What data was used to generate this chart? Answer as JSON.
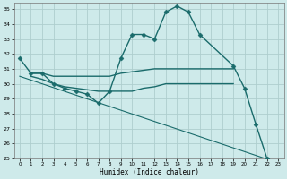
{
  "title": "",
  "xlabel": "Humidex (Indice chaleur)",
  "xlim": [
    -0.5,
    23.5
  ],
  "ylim": [
    25,
    35.4
  ],
  "yticks": [
    25,
    26,
    27,
    28,
    29,
    30,
    31,
    32,
    33,
    34,
    35
  ],
  "xticks": [
    0,
    1,
    2,
    3,
    4,
    5,
    6,
    7,
    8,
    9,
    10,
    11,
    12,
    13,
    14,
    15,
    16,
    17,
    18,
    19,
    20,
    21,
    22,
    23
  ],
  "bg_color": "#ceeaea",
  "grid_color": "#aecece",
  "line_color": "#1a6b6b",
  "series": [
    {
      "x": [
        0,
        1,
        2,
        3,
        4,
        5,
        6,
        7,
        8,
        9,
        10,
        11,
        12,
        13,
        14,
        15,
        16,
        19,
        20,
        21,
        22,
        23
      ],
      "y": [
        31.7,
        30.7,
        30.7,
        30.0,
        29.7,
        29.5,
        29.3,
        28.7,
        29.5,
        31.7,
        33.3,
        33.3,
        33.0,
        34.8,
        35.2,
        34.8,
        33.3,
        31.2,
        29.7,
        27.3,
        25.0,
        24.7
      ],
      "marker": "D",
      "markersize": 2.5,
      "linewidth": 1.0
    },
    {
      "x": [
        1,
        2,
        3,
        4,
        5,
        6,
        7,
        8,
        9,
        10,
        11,
        12,
        13,
        14,
        15,
        16,
        17,
        18,
        19
      ],
      "y": [
        30.7,
        30.7,
        30.5,
        30.5,
        30.5,
        30.5,
        30.5,
        30.5,
        30.7,
        30.8,
        30.9,
        31.0,
        31.0,
        31.0,
        31.0,
        31.0,
        31.0,
        31.0,
        31.0
      ],
      "marker": null,
      "markersize": 0,
      "linewidth": 1.0
    },
    {
      "x": [
        1,
        2,
        3,
        4,
        5,
        6,
        7,
        8,
        9,
        10,
        11,
        12,
        13,
        14,
        15,
        16,
        17,
        18,
        19
      ],
      "y": [
        30.5,
        30.3,
        30.0,
        29.8,
        29.7,
        29.6,
        29.5,
        29.5,
        29.5,
        29.5,
        29.7,
        29.8,
        30.0,
        30.0,
        30.0,
        30.0,
        30.0,
        30.0,
        30.0
      ],
      "marker": null,
      "markersize": 0,
      "linewidth": 1.0
    },
    {
      "x": [
        0,
        23
      ],
      "y": [
        30.5,
        24.7
      ],
      "marker": null,
      "markersize": 0,
      "linewidth": 0.8
    }
  ]
}
